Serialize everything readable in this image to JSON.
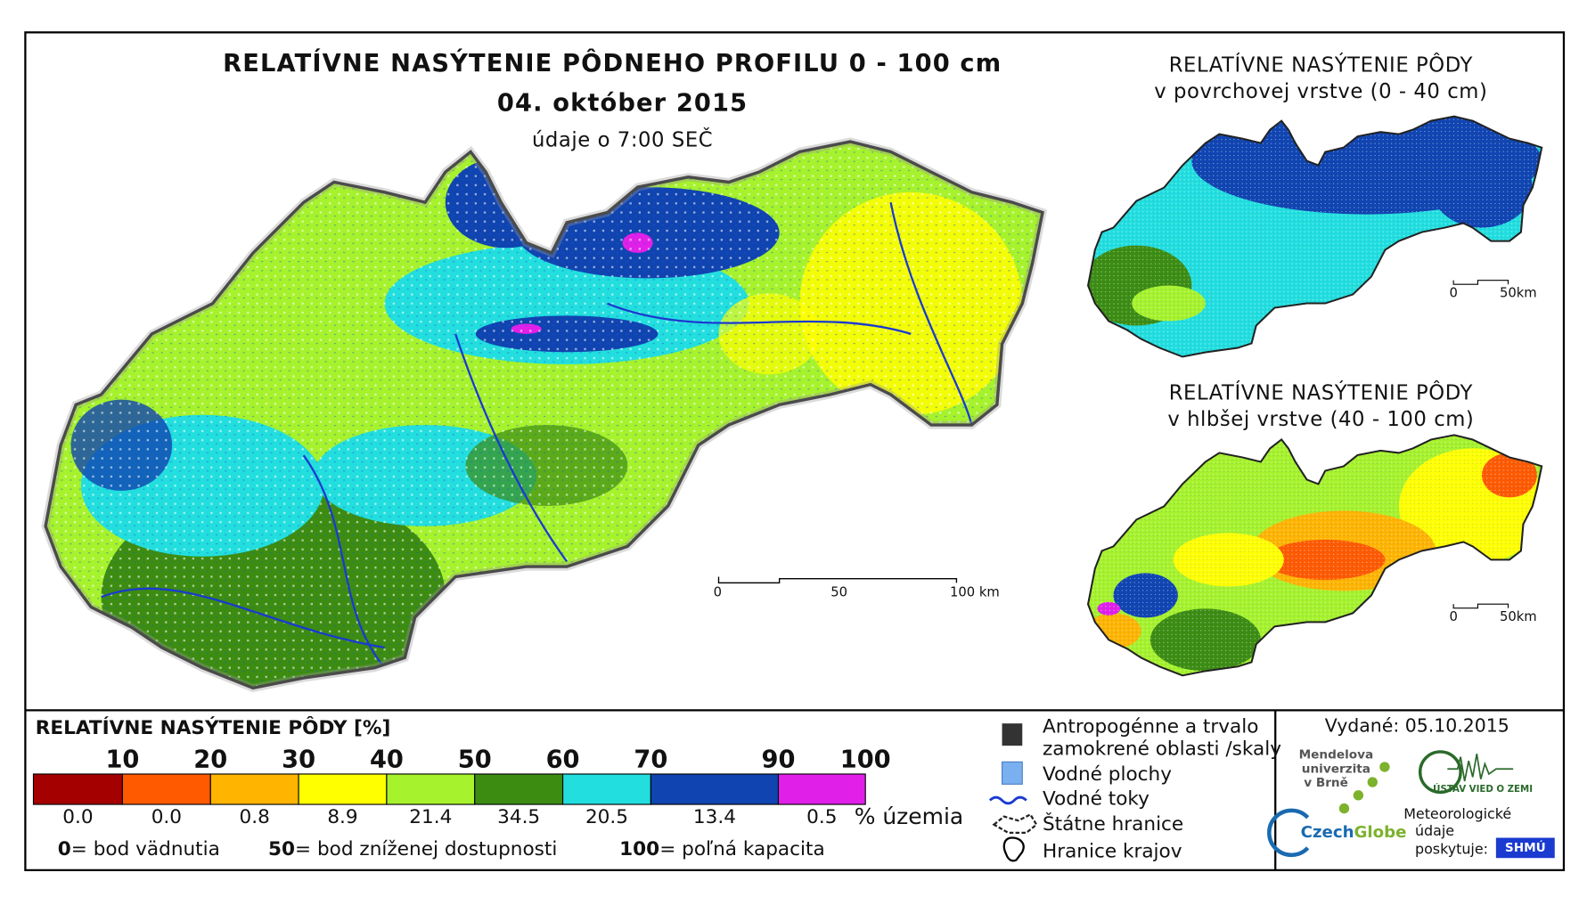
{
  "title": "RELATÍVNE NASÝTENIE PÔDNEHO PROFILU 0 - 100 cm",
  "date": "04. október 2015",
  "time_note": "údaje o 7:00 SEČ",
  "scale_bar": {
    "labels": [
      "0",
      "50",
      "100 km"
    ]
  },
  "inset_maps": [
    {
      "title_lines": [
        "RELATÍVNE NASÝTENIE PÔDY",
        "v povrchovej vrstve (0 - 40 cm)"
      ],
      "scale_labels": [
        "0",
        "50km"
      ]
    },
    {
      "title_lines": [
        "RELATÍVNE NASÝTENIE PÔDY",
        "v hlbšej vrstve (40 - 100 cm)"
      ],
      "scale_labels": [
        "0",
        "50km"
      ]
    }
  ],
  "legend": {
    "title": "RELATÍVNE NASÝTENIE PÔDY [%]",
    "thresholds": [
      "10",
      "20",
      "30",
      "40",
      "50",
      "60",
      "70",
      "90",
      "100"
    ],
    "classes": [
      {
        "color": "#a50000",
        "share": "0.0"
      },
      {
        "color": "#ff5a00",
        "share": "0.0"
      },
      {
        "color": "#ffb400",
        "share": "0.8"
      },
      {
        "color": "#ffff00",
        "share": "8.9"
      },
      {
        "color": "#a6f22c",
        "share": "21.4"
      },
      {
        "color": "#3c8c12",
        "share": "34.5"
      },
      {
        "color": "#22dede",
        "share": "20.5"
      },
      {
        "color": "#1044b0",
        "share": "13.4"
      },
      {
        "color": "#e020e8",
        "share": "0.5"
      }
    ],
    "share_unit": "% územia",
    "notes": [
      {
        "value": "0",
        "text": "= bod vädnutia"
      },
      {
        "value": "50",
        "text": "= bod zníženej dostupnosti"
      },
      {
        "value": "100",
        "text": "= poľná kapacita"
      }
    ],
    "symbols": [
      {
        "label_lines": [
          "Antropogénne a trvalo",
          "zamokrené oblasti /skaly"
        ]
      },
      {
        "label_lines": [
          "Vodné plochy"
        ]
      },
      {
        "label_lines": [
          "Vodné toky"
        ]
      },
      {
        "label_lines": [
          "Štátne hranice"
        ]
      },
      {
        "label_lines": [
          "Hranice krajov"
        ]
      }
    ]
  },
  "credits": {
    "issued": "Vydané: 05.10.2015",
    "mendel_lines": [
      "Mendelova",
      "univerzita",
      "v Brně"
    ],
    "czechglobe": [
      "Czech",
      "Globe"
    ],
    "ustav": "ÚSTAV VIED O ZEMI",
    "provider_lines": [
      "Meteorologické",
      "údaje",
      "poskytuje:"
    ],
    "shmu": "SHMÚ"
  }
}
